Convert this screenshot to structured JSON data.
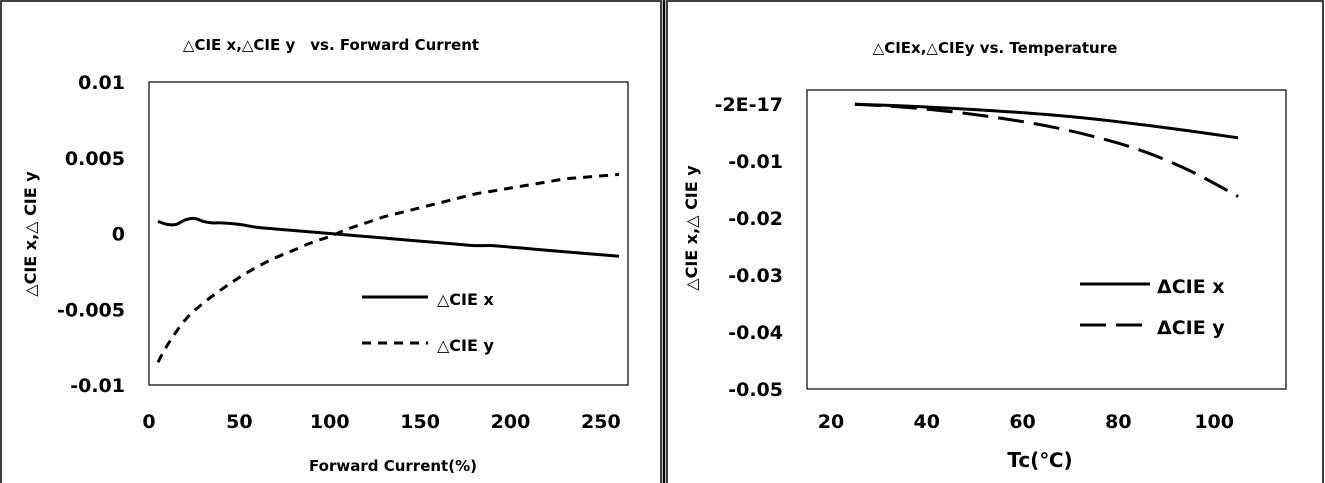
{
  "chart_data": [
    {
      "type": "line",
      "title": "△CIE x,△CIE y　vs. Forward Current",
      "xlabel": "Forward Current(%)",
      "ylabel": "△CIE x,△ CIE y",
      "xlim": [
        0,
        265
      ],
      "ylim": [
        -0.01,
        0.01
      ],
      "x_ticks": [
        0,
        50,
        100,
        150,
        200,
        250
      ],
      "x_tick_labels": [
        "0",
        "50",
        "100",
        "150",
        "200",
        "250"
      ],
      "y_ticks": [
        0.01,
        0.005,
        0,
        -0.005,
        -0.01
      ],
      "y_tick_labels": [
        "0.01",
        "0.005",
        "0",
        "-0.005",
        "-0.01"
      ],
      "grid": false,
      "legend_position": "center-right",
      "series": [
        {
          "name": "△CIE x",
          "style": "solid",
          "x": [
            5,
            10,
            15,
            20,
            25,
            30,
            35,
            40,
            50,
            60,
            70,
            80,
            90,
            100,
            110,
            120,
            130,
            140,
            150,
            160,
            170,
            180,
            190,
            200,
            210,
            220,
            230,
            240,
            250,
            260
          ],
          "y": [
            0.0008,
            0.0006,
            0.0006,
            0.0009,
            0.001,
            0.0008,
            0.0007,
            0.0007,
            0.0006,
            0.0004,
            0.0003,
            0.0002,
            0.0001,
            0.0,
            -0.0001,
            -0.0002,
            -0.0003,
            -0.0004,
            -0.0005,
            -0.0006,
            -0.0007,
            -0.0008,
            -0.0008,
            -0.0009,
            -0.001,
            -0.0011,
            -0.0012,
            -0.0013,
            -0.0014,
            -0.0015
          ]
        },
        {
          "name": "△CIE y",
          "style": "dashed",
          "x": [
            5,
            10,
            20,
            30,
            40,
            50,
            60,
            70,
            80,
            90,
            100,
            110,
            120,
            130,
            140,
            150,
            160,
            170,
            180,
            190,
            200,
            210,
            220,
            230,
            240,
            250,
            260
          ],
          "y": [
            -0.0085,
            -0.0074,
            -0.0057,
            -0.0046,
            -0.0037,
            -0.0029,
            -0.0022,
            -0.0016,
            -0.0011,
            -0.0006,
            -0.0002,
            0.0003,
            0.0007,
            0.0011,
            0.0014,
            0.0017,
            0.002,
            0.0023,
            0.0026,
            0.0028,
            0.003,
            0.0032,
            0.0034,
            0.0036,
            0.0037,
            0.0038,
            0.0039
          ]
        }
      ]
    },
    {
      "type": "line",
      "title": "△CIEx,△CIEy vs. Temperature",
      "xlabel": "Tc(℃)",
      "ylabel": "△CIE x,△ CIE y",
      "xlim": [
        15,
        115
      ],
      "ylim": [
        -0.05,
        0.0025
      ],
      "x_ticks": [
        20,
        40,
        60,
        80,
        100
      ],
      "x_tick_labels": [
        "20",
        "40",
        "60",
        "80",
        "100"
      ],
      "y_ticks": [
        0,
        -0.01,
        -0.02,
        -0.03,
        -0.04,
        -0.05
      ],
      "y_tick_labels": [
        "-2E-17",
        "-0.01",
        "-0.02",
        "-0.03",
        "-0.04",
        "-0.05"
      ],
      "grid": false,
      "legend_position": "center-right",
      "series": [
        {
          "name": "ΔCIE x",
          "style": "solid",
          "x": [
            25,
            35,
            45,
            55,
            65,
            75,
            85,
            95,
            105
          ],
          "y": [
            0.0,
            -0.0003,
            -0.0007,
            -0.0012,
            -0.0018,
            -0.0026,
            -0.0036,
            -0.0047,
            -0.0059
          ]
        },
        {
          "name": "ΔCIE y",
          "style": "long-dash",
          "x": [
            25,
            35,
            45,
            55,
            65,
            75,
            85,
            95,
            105
          ],
          "y": [
            0.0,
            -0.0005,
            -0.0013,
            -0.0024,
            -0.0038,
            -0.0057,
            -0.0082,
            -0.0117,
            -0.0162
          ]
        }
      ]
    }
  ]
}
